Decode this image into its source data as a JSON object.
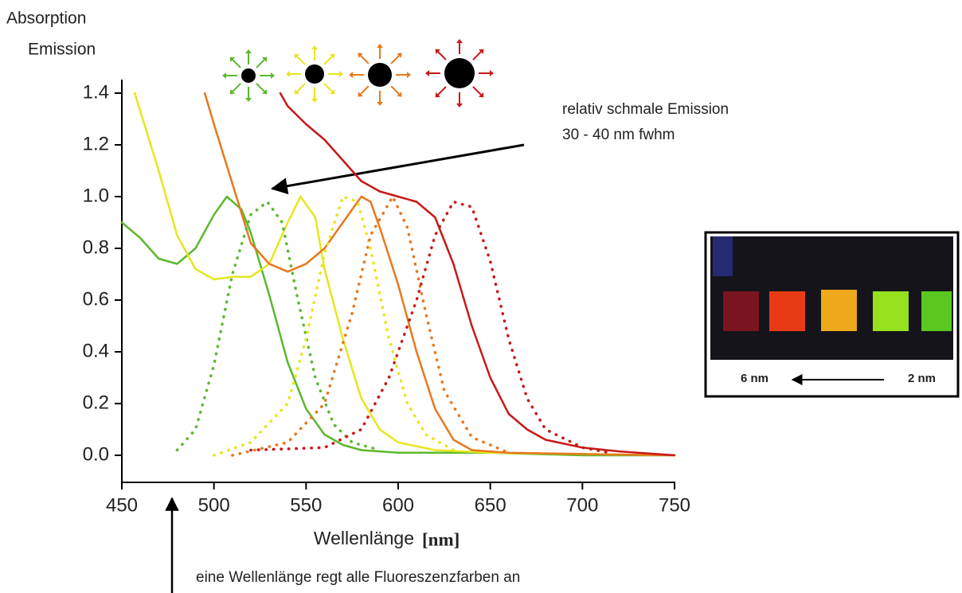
{
  "chart_data": {
    "type": "line",
    "ylabel_lines": [
      "Absorption",
      "Emission"
    ],
    "xlabel": "Wellenlänge",
    "xlabel_unit": "[nm]",
    "annotations": [
      "relativ schmale Emission",
      "30 - 40 nm fwhm",
      "eine Wellenlänge regt alle Fluoreszenzfarben an"
    ],
    "inset_labels": [
      "6 nm",
      "2 nm"
    ],
    "xlim": [
      450,
      750
    ],
    "xticks": [
      450,
      500,
      550,
      600,
      650,
      700,
      750
    ],
    "ylim": [
      0,
      1.4
    ],
    "yticks": [
      {
        "value": 0,
        "label": "0.0"
      },
      0.2,
      0.4,
      0.6,
      0.8,
      {
        "value": 1,
        "label": "1.0"
      },
      1.2,
      1.4
    ],
    "series": [
      {
        "color": "#5cb82e",
        "style": "solid",
        "x": [
          450,
          460,
          470,
          480,
          490,
          500,
          507,
          515,
          520,
          530,
          540,
          550,
          560,
          570,
          580,
          600,
          650,
          700,
          750
        ],
        "values": [
          0.9,
          0.84,
          0.76,
          0.74,
          0.8,
          0.93,
          1.0,
          0.95,
          0.86,
          0.62,
          0.36,
          0.18,
          0.08,
          0.04,
          0.02,
          0.01,
          0.01,
          0.0,
          0.0
        ]
      },
      {
        "color": "#e6e61e",
        "style": "solid",
        "x": [
          457,
          470,
          480,
          490,
          500,
          510,
          520,
          530,
          540,
          547,
          555,
          560,
          570,
          580,
          590,
          600,
          620,
          650,
          750
        ],
        "values": [
          1.4,
          1.1,
          0.85,
          0.72,
          0.68,
          0.69,
          0.69,
          0.74,
          0.9,
          1.0,
          0.92,
          0.72,
          0.45,
          0.22,
          0.1,
          0.05,
          0.02,
          0.01,
          0.0
        ]
      },
      {
        "color": "#e8781e",
        "style": "solid",
        "x": [
          495,
          500,
          510,
          520,
          530,
          540,
          550,
          560,
          570,
          580,
          585,
          590,
          600,
          610,
          620,
          630,
          640,
          660,
          700,
          750
        ],
        "values": [
          1.4,
          1.28,
          1.05,
          0.82,
          0.74,
          0.71,
          0.74,
          0.8,
          0.9,
          1.0,
          0.98,
          0.88,
          0.66,
          0.4,
          0.18,
          0.06,
          0.02,
          0.01,
          0.005,
          0.0
        ]
      },
      {
        "color": "#c81818",
        "style": "solid",
        "x": [
          536,
          540,
          550,
          560,
          570,
          580,
          590,
          600,
          610,
          620,
          630,
          640,
          650,
          660,
          670,
          680,
          700,
          720,
          750
        ],
        "values": [
          1.4,
          1.35,
          1.28,
          1.22,
          1.14,
          1.06,
          1.02,
          1.0,
          0.98,
          0.92,
          0.74,
          0.5,
          0.3,
          0.16,
          0.1,
          0.06,
          0.03,
          0.015,
          0.0
        ]
      },
      {
        "color": "#5cb82e",
        "style": "dotted",
        "x": [
          480,
          490,
          500,
          510,
          520,
          529,
          537,
          545,
          555,
          565,
          575,
          590
        ],
        "values": [
          0.02,
          0.1,
          0.35,
          0.7,
          0.93,
          0.98,
          0.9,
          0.62,
          0.3,
          0.12,
          0.05,
          0.02
        ]
      },
      {
        "color": "#e6e61e",
        "style": "dotted",
        "x": [
          500,
          520,
          540,
          550,
          560,
          570,
          578,
          585,
          595,
          605,
          615,
          630
        ],
        "values": [
          0.0,
          0.05,
          0.2,
          0.45,
          0.78,
          1.0,
          0.98,
          0.8,
          0.45,
          0.2,
          0.08,
          0.02
        ]
      },
      {
        "color": "#e8781e",
        "style": "dotted",
        "x": [
          510,
          540,
          560,
          575,
          585,
          597,
          605,
          615,
          625,
          640,
          660
        ],
        "values": [
          0.0,
          0.05,
          0.2,
          0.55,
          0.85,
          1.0,
          0.88,
          0.55,
          0.25,
          0.07,
          0.01
        ]
      },
      {
        "color": "#c81818",
        "style": "dotted",
        "x": [
          520,
          560,
          580,
          595,
          610,
          620,
          630,
          640,
          650,
          660,
          670,
          680,
          700,
          715
        ],
        "values": [
          0.02,
          0.03,
          0.1,
          0.3,
          0.6,
          0.85,
          0.98,
          0.96,
          0.75,
          0.45,
          0.22,
          0.1,
          0.03,
          0.01
        ]
      }
    ]
  }
}
